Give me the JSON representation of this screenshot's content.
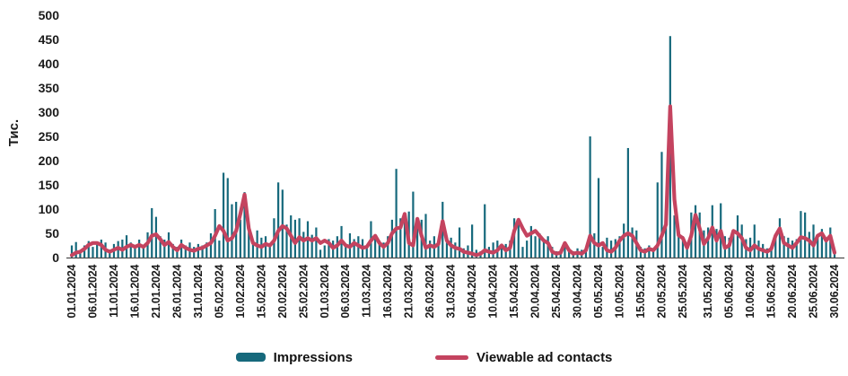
{
  "chart_data": {
    "type": "bar",
    "title": "",
    "xlabel": "",
    "ylabel": "Тис.",
    "ylim": [
      0,
      500
    ],
    "yticks": [
      0,
      50,
      100,
      150,
      200,
      250,
      300,
      350,
      400,
      450,
      500
    ],
    "grid": false,
    "legend_position": "bottom",
    "x_start": "01.01.2024",
    "x_end": "30.06.2024",
    "x_frequency": "daily",
    "x_tick_labels": [
      "01.01.2024",
      "06.01.2024",
      "11.01.2024",
      "16.01.2024",
      "21.01.2024",
      "26.01.2024",
      "31.01.2024",
      "05.02.2024",
      "10.02.2024",
      "15.02.2024",
      "20.02.2024",
      "25.02.2024",
      "01.03.2024",
      "06.03.2024",
      "11.03.2024",
      "16.03.2024",
      "21.03.2024",
      "26.03.2024",
      "31.03.2024",
      "05.04.2024",
      "10.04.2024",
      "15.04.2024",
      "20.04.2024",
      "25.04.2024",
      "30.04.2024",
      "05.05.2024",
      "10.05.2024",
      "15.05.2024",
      "20.05.2024",
      "25.05.2024",
      "31.05.2024",
      "05.06.2024",
      "10.06.2024",
      "15.06.2024",
      "20.06.2024",
      "25.06.2024",
      "30.06.2024"
    ],
    "series": [
      {
        "name": "Impressions",
        "type": "bar",
        "color": "#16697C",
        "values": [
          25,
          32,
          15,
          25,
          34,
          22,
          28,
          37,
          31,
          15,
          28,
          34,
          37,
          46,
          31,
          25,
          37,
          25,
          52,
          102,
          84,
          44,
          37,
          52,
          28,
          22,
          37,
          25,
          31,
          22,
          28,
          25,
          31,
          50,
          100,
          35,
          175,
          164,
          110,
          115,
          78,
          135,
          53,
          35,
          56,
          41,
          44,
          25,
          81,
          155,
          140,
          68,
          87,
          78,
          81,
          53,
          75,
          47,
          62,
          16,
          25,
          38,
          35,
          44,
          65,
          22,
          50,
          38,
          44,
          38,
          22,
          75,
          41,
          35,
          31,
          44,
          78,
          183,
          81,
          87,
          95,
          136,
          72,
          78,
          90,
          35,
          44,
          31,
          115,
          31,
          41,
          31,
          62,
          19,
          25,
          68,
          16,
          13,
          110,
          22,
          31,
          35,
          25,
          28,
          35,
          81,
          68,
          22,
          35,
          65,
          44,
          50,
          35,
          44,
          22,
          13,
          16,
          31,
          16,
          13,
          19,
          16,
          13,
          250,
          50,
          164,
          22,
          41,
          35,
          38,
          44,
          70,
          226,
          62,
          56,
          22,
          19,
          25,
          19,
          155,
          218,
          68,
          457,
          87,
          50,
          44,
          25,
          93,
          108,
          93,
          56,
          62,
          108,
          59,
          112,
          44,
          41,
          50,
          87,
          68,
          38,
          41,
          68,
          35,
          28,
          19,
          25,
          44,
          81,
          44,
          41,
          35,
          38,
          96,
          93,
          53,
          68,
          41,
          59,
          38,
          62,
          13
        ]
      },
      {
        "name": "Viewable ad contacts",
        "type": "line",
        "color": "#C4435F",
        "values": [
          5,
          10,
          12,
          18,
          26,
          30,
          30,
          26,
          16,
          12,
          16,
          20,
          16,
          22,
          26,
          22,
          26,
          22,
          30,
          45,
          48,
          38,
          26,
          32,
          22,
          15,
          26,
          20,
          16,
          14,
          18,
          20,
          25,
          30,
          45,
          65,
          55,
          35,
          40,
          55,
          90,
          130,
          60,
          30,
          25,
          22,
          28,
          25,
          35,
          55,
          65,
          60,
          45,
          30,
          42,
          35,
          40,
          35,
          40,
          30,
          35,
          30,
          20,
          25,
          35,
          25,
          22,
          30,
          25,
          20,
          22,
          35,
          45,
          30,
          22,
          30,
          50,
          60,
          62,
          90,
          30,
          25,
          80,
          45,
          20,
          25,
          22,
          28,
          75,
          35,
          25,
          20,
          18,
          12,
          10,
          8,
          5,
          8,
          15,
          12,
          10,
          15,
          25,
          15,
          20,
          55,
          78,
          60,
          45,
          50,
          55,
          45,
          35,
          30,
          12,
          8,
          10,
          30,
          15,
          8,
          10,
          8,
          15,
          45,
          30,
          25,
          30,
          15,
          12,
          20,
          35,
          45,
          50,
          45,
          30,
          15,
          12,
          18,
          15,
          25,
          45,
          68,
          312,
          120,
          46,
          40,
          20,
          45,
          88,
          60,
          28,
          40,
          62,
          35,
          55,
          20,
          25,
          55,
          50,
          40,
          20,
          15,
          25,
          18,
          15,
          12,
          18,
          45,
          60,
          30,
          25,
          20,
          30,
          42,
          40,
          35,
          25,
          45,
          50,
          35,
          45,
          10
        ]
      }
    ]
  }
}
